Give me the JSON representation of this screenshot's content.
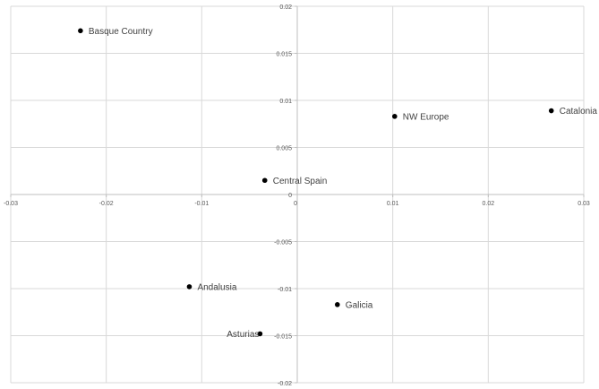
{
  "chart_data": {
    "type": "scatter",
    "title": "",
    "xlabel": "",
    "ylabel": "",
    "xlim": [
      -0.03,
      0.03
    ],
    "ylim": [
      -0.02,
      0.02
    ],
    "x_ticks": [
      -0.03,
      -0.02,
      -0.01,
      0,
      0.01,
      0.02,
      0.03
    ],
    "y_ticks": [
      -0.02,
      -0.015,
      -0.01,
      -0.005,
      0,
      0.005,
      0.01,
      0.015,
      0.02
    ],
    "x_tick_labels": [
      "-0.03",
      "-0.02",
      "-0.01",
      "0",
      "0.01",
      "0.02",
      "0.03"
    ],
    "y_tick_labels": [
      "-0.02",
      "-0.015",
      "-0.01",
      "-0.005",
      "0",
      "0.005",
      "0.01",
      "0.015",
      "0.02"
    ],
    "grid": true,
    "legend": "none",
    "marker_color": "#000000",
    "points": [
      {
        "label": "Basque Country",
        "x": -0.0227,
        "y": 0.0174,
        "label_side": "right"
      },
      {
        "label": "NW Europe",
        "x": 0.0102,
        "y": 0.0083,
        "label_side": "right"
      },
      {
        "label": "Catalonia",
        "x": 0.0266,
        "y": 0.0089,
        "label_side": "right"
      },
      {
        "label": "Central Spain",
        "x": -0.0034,
        "y": 0.0015,
        "label_side": "right"
      },
      {
        "label": "Andalusia",
        "x": -0.0113,
        "y": -0.0098,
        "label_side": "right"
      },
      {
        "label": "Galicia",
        "x": 0.0042,
        "y": -0.0117,
        "label_side": "right"
      },
      {
        "label": "Asturias",
        "x": -0.0039,
        "y": -0.0148,
        "label_side": "left"
      }
    ]
  }
}
